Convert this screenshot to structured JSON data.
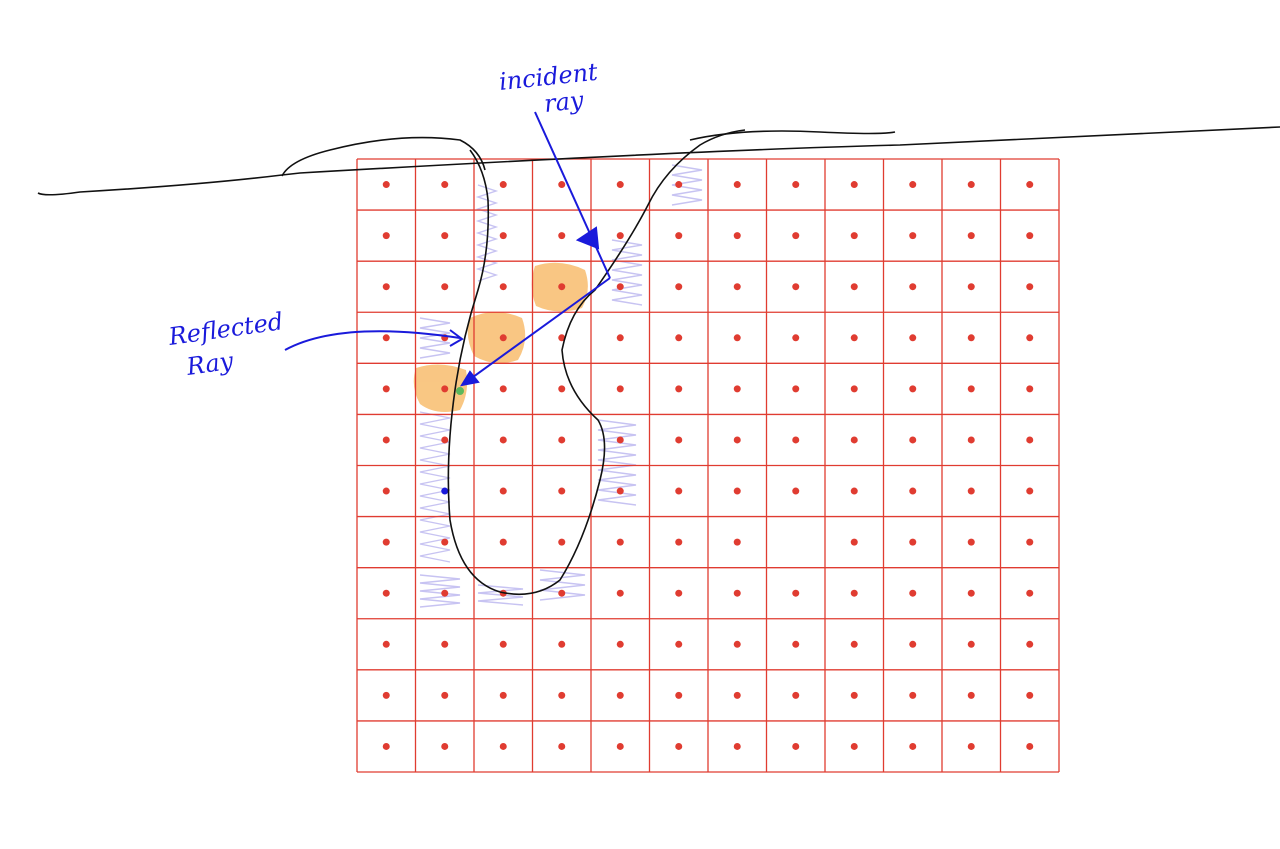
{
  "incident_ray_label": {
    "line1": "incident",
    "line2": "ray"
  },
  "reflected_ray_label": {
    "line1": "Reflected",
    "line2": "Ray"
  }
}
